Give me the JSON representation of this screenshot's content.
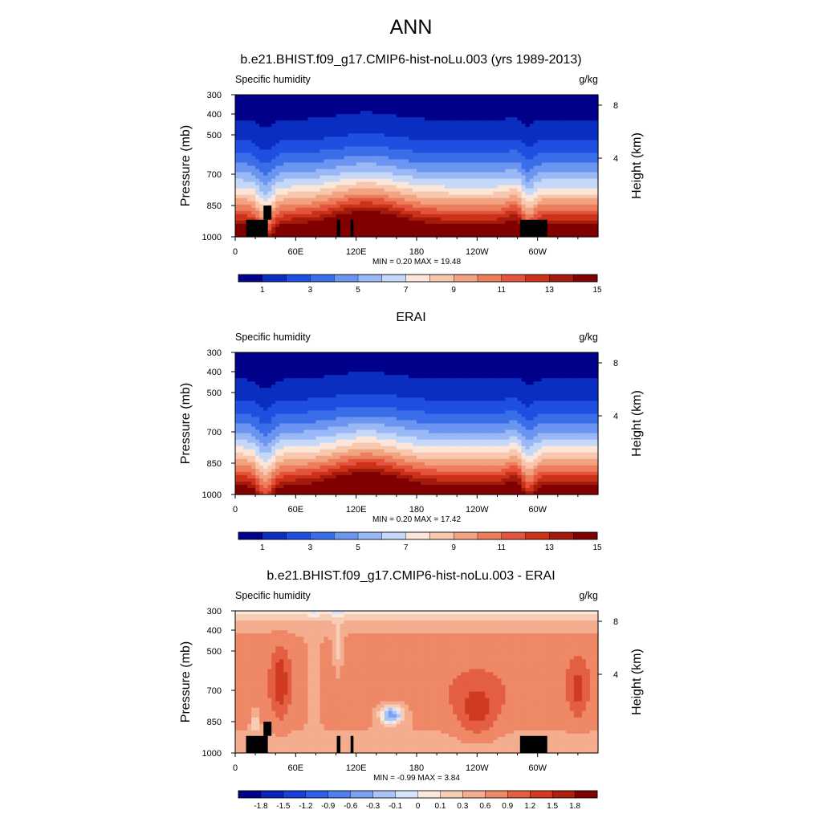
{
  "figure": {
    "title": "ANN"
  },
  "chart_data": [
    {
      "type": "heatmap",
      "title": "b.e21.BHIST.f09_g17.CMIP6-hist-noLu.003 (yrs 1989-2013)",
      "left_label": "Specific humidity",
      "units": "g/kg",
      "ylabel": "Pressure (mb)",
      "ylabel_right": "Height (km)",
      "xlabel": "",
      "x_ticks": [
        "0",
        "60E",
        "120E",
        "180",
        "120W",
        "60W"
      ],
      "y_ticks": [
        "300",
        "400",
        "500",
        "700",
        "850",
        "1000"
      ],
      "y2_ticks": [
        "8",
        "4"
      ],
      "xlim": [
        0,
        360
      ],
      "ylim": [
        1000,
        300
      ],
      "stats": "MIN =   0.20  MAX =  19.48",
      "min": 0.2,
      "max": 19.48,
      "colorbar_labels": [
        "1",
        "3",
        "5",
        "7",
        "9",
        "11",
        "13",
        "15"
      ],
      "colorbar_colors": [
        "#00008b",
        "#0a2fc0",
        "#1f4fe0",
        "#3a6ee8",
        "#6b95f0",
        "#9ab8f5",
        "#c6d8f8",
        "#fbe6d9",
        "#f7c7ae",
        "#f2a482",
        "#ed7e5c",
        "#e4543c",
        "#cc3218",
        "#a31b0c",
        "#800000"
      ],
      "field": "q_model",
      "terrain_blocks": true
    },
    {
      "type": "heatmap",
      "title": "ERAI",
      "left_label": "Specific humidity",
      "units": "g/kg",
      "ylabel": "Pressure (mb)",
      "ylabel_right": "Height (km)",
      "xlabel": "",
      "x_ticks": [
        "0",
        "60E",
        "120E",
        "180",
        "120W",
        "60W"
      ],
      "y_ticks": [
        "300",
        "400",
        "500",
        "700",
        "850",
        "1000"
      ],
      "y2_ticks": [
        "8",
        "4"
      ],
      "xlim": [
        0,
        360
      ],
      "ylim": [
        1000,
        300
      ],
      "stats": "MIN =   0.20  MAX =  17.42",
      "min": 0.2,
      "max": 17.42,
      "colorbar_labels": [
        "1",
        "3",
        "5",
        "7",
        "9",
        "11",
        "13",
        "15"
      ],
      "colorbar_colors": [
        "#00008b",
        "#0a2fc0",
        "#1f4fe0",
        "#3a6ee8",
        "#6b95f0",
        "#9ab8f5",
        "#c6d8f8",
        "#fbe6d9",
        "#f7c7ae",
        "#f2a482",
        "#ed7e5c",
        "#e4543c",
        "#cc3218",
        "#a31b0c",
        "#800000"
      ],
      "field": "q_obs",
      "terrain_blocks": false
    },
    {
      "type": "heatmap",
      "title": "b.e21.BHIST.f09_g17.CMIP6-hist-noLu.003 - ERAI",
      "left_label": "Specific humidity",
      "units": "g/kg",
      "ylabel": "Pressure (mb)",
      "ylabel_right": "Height (km)",
      "xlabel": "",
      "x_ticks": [
        "0",
        "60E",
        "120E",
        "180",
        "120W",
        "60W"
      ],
      "y_ticks": [
        "300",
        "400",
        "500",
        "700",
        "850",
        "1000"
      ],
      "y2_ticks": [
        "8",
        "4"
      ],
      "xlim": [
        0,
        360
      ],
      "ylim": [
        1000,
        300
      ],
      "stats": "MIN =  -0.99  MAX =   3.84",
      "min": -0.99,
      "max": 3.84,
      "colorbar_labels": [
        "-1.8",
        "-1.5",
        "-1.2",
        "-0.9",
        "-0.6",
        "-0.3",
        "-0.1",
        "0",
        "0.1",
        "0.3",
        "0.6",
        "0.9",
        "1.2",
        "1.5",
        "1.8"
      ],
      "colorbar_colors": [
        "#00008b",
        "#0a24b5",
        "#1640d6",
        "#2e5fe6",
        "#4e7fee",
        "#7aa2f3",
        "#a9c4f7",
        "#d6e4fa",
        "#fbe8dc",
        "#f8cdb6",
        "#f4ad8e",
        "#ee8866",
        "#e45f42",
        "#d03a20",
        "#ad1f0e",
        "#800000"
      ],
      "field": "q_diff",
      "terrain_blocks": true
    }
  ],
  "palette": {
    "terrain": "#000000",
    "axis": "#000000",
    "background": "#ffffff"
  }
}
